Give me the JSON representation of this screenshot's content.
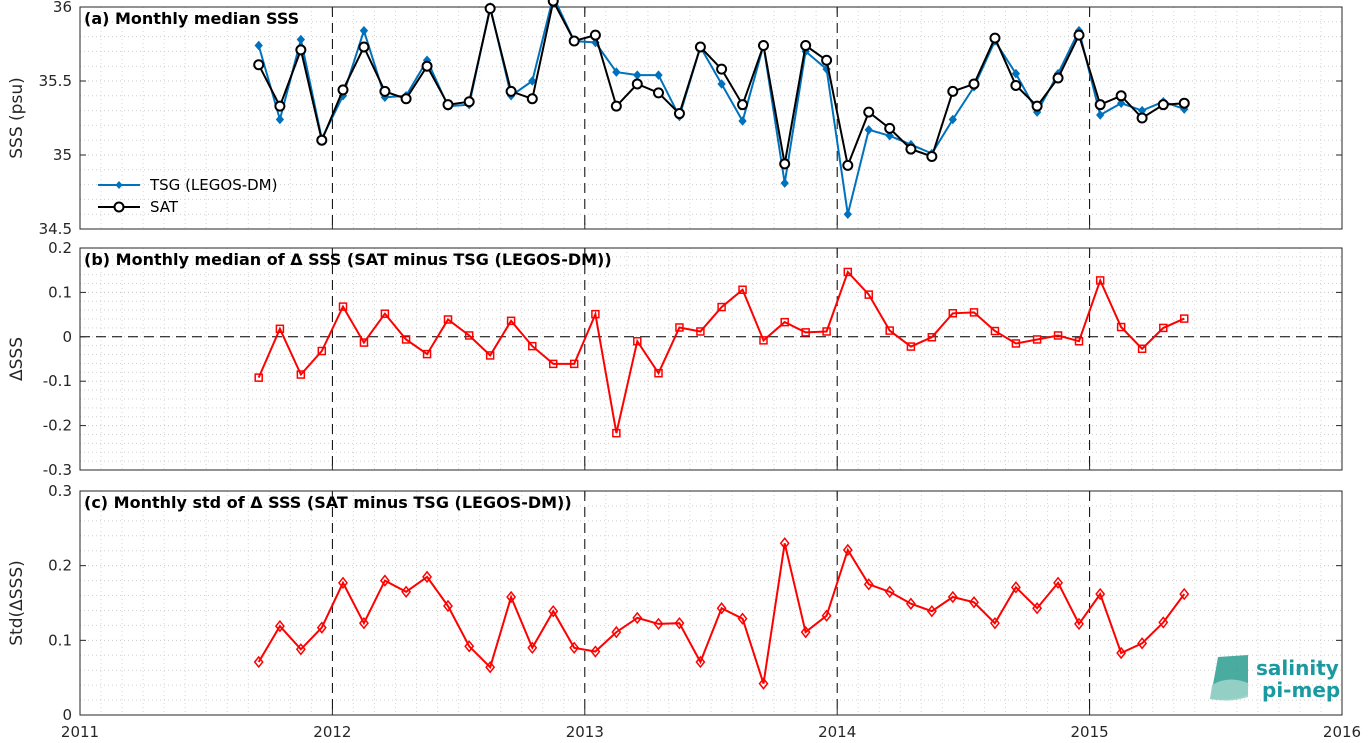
{
  "chart_data": [
    {
      "type": "line",
      "title": "(a) Monthly median SSS",
      "ylabel": "SSS (psu)",
      "xlim": [
        2011,
        2016
      ],
      "ylim": [
        34.5,
        36
      ],
      "yticks": [
        "34.5",
        "35",
        "35.5",
        "36"
      ],
      "legend": {
        "position": "bottom-left"
      },
      "grid": true,
      "x": [
        2011.708,
        2011.792,
        2011.875,
        2011.958,
        2012.042,
        2012.125,
        2012.208,
        2012.292,
        2012.375,
        2012.458,
        2012.542,
        2012.625,
        2012.708,
        2012.792,
        2012.875,
        2012.958,
        2013.042,
        2013.125,
        2013.208,
        2013.292,
        2013.375,
        2013.458,
        2013.542,
        2013.625,
        2013.708,
        2013.792,
        2013.875,
        2013.958,
        2014.042,
        2014.125,
        2014.208,
        2014.292,
        2014.375,
        2014.458,
        2014.542,
        2014.625,
        2014.708,
        2014.792,
        2014.875,
        2014.958,
        2015.042,
        2015.125,
        2015.208,
        2015.292,
        2015.375
      ],
      "series": [
        {
          "name": "TSG (LEGOS-DM)",
          "color": "#0072BD",
          "marker": "diamond",
          "values": [
            35.74,
            35.24,
            35.78,
            35.11,
            35.4,
            35.84,
            35.39,
            35.4,
            35.64,
            35.33,
            35.34,
            36.0,
            35.4,
            35.5,
            36.07,
            35.77,
            35.76,
            35.56,
            35.54,
            35.54,
            35.26,
            35.73,
            35.48,
            35.23,
            35.74,
            34.81,
            35.7,
            35.58,
            34.6,
            35.17,
            35.13,
            35.07,
            35.01,
            35.24,
            35.46,
            35.77,
            35.55,
            35.29,
            35.55,
            35.84,
            35.27,
            35.35,
            35.3,
            35.36,
            35.31
          ]
        },
        {
          "name": "SAT",
          "color": "#000000",
          "marker": "circle",
          "values": [
            35.61,
            35.33,
            35.71,
            35.1,
            35.44,
            35.73,
            35.43,
            35.38,
            35.6,
            35.34,
            35.36,
            35.99,
            35.43,
            35.38,
            36.04,
            35.77,
            35.81,
            35.33,
            35.48,
            35.42,
            35.28,
            35.73,
            35.58,
            35.34,
            35.74,
            34.94,
            35.74,
            35.64,
            34.93,
            35.29,
            35.18,
            35.04,
            34.99,
            35.43,
            35.48,
            35.79,
            35.47,
            35.33,
            35.52,
            35.81,
            35.34,
            35.4,
            35.25,
            35.34,
            35.35
          ]
        }
      ]
    },
    {
      "type": "line",
      "title": "(b) Monthly median of Δ SSS (SAT minus TSG (LEGOS-DM))",
      "ylabel": "ΔSSS",
      "xlim": [
        2011,
        2016
      ],
      "ylim": [
        -0.3,
        0.2
      ],
      "yticks": [
        "-0.3",
        "-0.2",
        "-0.1",
        "0",
        "0.1",
        "0.2"
      ],
      "grid": true,
      "reference_line": 0,
      "x": [
        2011.708,
        2011.792,
        2011.875,
        2011.958,
        2012.042,
        2012.125,
        2012.208,
        2012.292,
        2012.375,
        2012.458,
        2012.542,
        2012.625,
        2012.708,
        2012.792,
        2012.875,
        2012.958,
        2013.042,
        2013.125,
        2013.208,
        2013.292,
        2013.375,
        2013.458,
        2013.542,
        2013.625,
        2013.708,
        2013.792,
        2013.875,
        2013.958,
        2014.042,
        2014.125,
        2014.208,
        2014.292,
        2014.375,
        2014.458,
        2014.542,
        2014.625,
        2014.708,
        2014.792,
        2014.875,
        2014.958,
        2015.042,
        2015.125,
        2015.208,
        2015.292,
        2015.375
      ],
      "series": [
        {
          "color": "#FF0000",
          "marker": "square",
          "values": [
            -0.092,
            0.018,
            -0.085,
            -0.032,
            0.068,
            -0.013,
            0.052,
            -0.006,
            -0.039,
            0.039,
            0.003,
            -0.042,
            0.036,
            -0.021,
            -0.061,
            -0.061,
            0.051,
            -0.217,
            -0.01,
            -0.082,
            0.021,
            0.012,
            0.067,
            0.106,
            -0.008,
            0.033,
            0.01,
            0.012,
            0.146,
            0.095,
            0.014,
            -0.022,
            -0.001,
            0.053,
            0.055,
            0.013,
            -0.015,
            -0.006,
            0.003,
            -0.01,
            0.127,
            0.022,
            -0.027,
            0.02,
            0.041
          ]
        }
      ]
    },
    {
      "type": "line",
      "title": "(c) Monthly std of Δ SSS (SAT minus TSG (LEGOS-DM))",
      "ylabel": "Std(ΔSSS)",
      "xlabel": "",
      "xlim": [
        2011,
        2016
      ],
      "xticks": [
        "2011",
        "2012",
        "2013",
        "2014",
        "2015",
        "2016"
      ],
      "ylim": [
        0,
        0.3
      ],
      "yticks": [
        "0",
        "0.1",
        "0.2",
        "0.3"
      ],
      "grid": true,
      "x": [
        2011.708,
        2011.792,
        2011.875,
        2011.958,
        2012.042,
        2012.125,
        2012.208,
        2012.292,
        2012.375,
        2012.458,
        2012.542,
        2012.625,
        2012.708,
        2012.792,
        2012.875,
        2012.958,
        2013.042,
        2013.125,
        2013.208,
        2013.292,
        2013.375,
        2013.458,
        2013.542,
        2013.625,
        2013.708,
        2013.792,
        2013.875,
        2013.958,
        2014.042,
        2014.125,
        2014.208,
        2014.292,
        2014.375,
        2014.458,
        2014.542,
        2014.625,
        2014.708,
        2014.792,
        2014.875,
        2014.958,
        2015.042,
        2015.125,
        2015.208,
        2015.292,
        2015.375
      ],
      "series": [
        {
          "color": "#FF0000",
          "marker": "diamond",
          "values": [
            0.071,
            0.119,
            0.088,
            0.117,
            0.177,
            0.123,
            0.18,
            0.165,
            0.185,
            0.146,
            0.092,
            0.064,
            0.158,
            0.09,
            0.139,
            0.09,
            0.085,
            0.111,
            0.13,
            0.122,
            0.123,
            0.071,
            0.143,
            0.129,
            0.042,
            0.23,
            0.111,
            0.133,
            0.221,
            0.175,
            0.165,
            0.149,
            0.139,
            0.158,
            0.151,
            0.123,
            0.171,
            0.143,
            0.177,
            0.122,
            0.162,
            0.083,
            0.096,
            0.124,
            0.162
          ]
        }
      ]
    }
  ],
  "logo": {
    "line1": "salinity",
    "line2": "pi-mep",
    "color": "#1a9aa0"
  }
}
